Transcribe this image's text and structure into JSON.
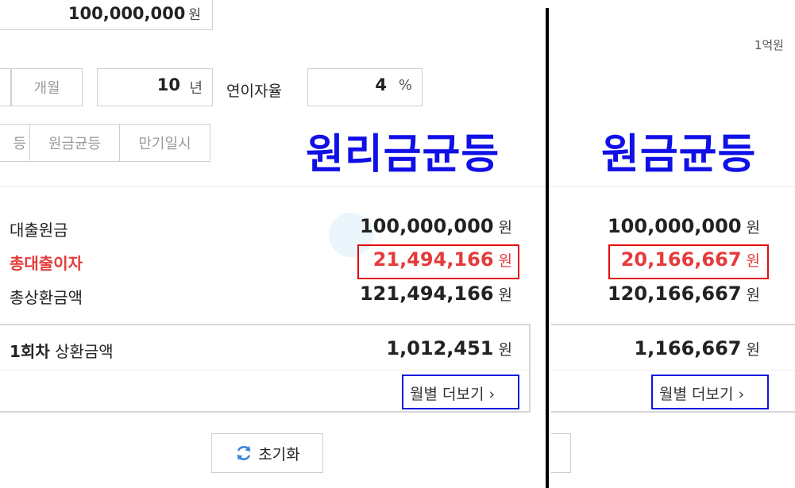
{
  "loan_amount": {
    "value": "100,000,000",
    "unit": "원",
    "hint": "1억원"
  },
  "period": {
    "unit_month_label": "개월",
    "value": "10",
    "unit_year": "년"
  },
  "interest": {
    "label": "연이자율",
    "value": "4",
    "unit": "%"
  },
  "tabs": [
    {
      "label": "등"
    },
    {
      "label": "원금균등"
    },
    {
      "label": "만기일시"
    }
  ],
  "annotations": {
    "left_method": "원리금균등",
    "right_method": "원금균등"
  },
  "results_left": {
    "principal_label": "대출원금",
    "principal_value": "100,000,000",
    "interest_label": "총대출이자",
    "interest_value": "21,494,166",
    "total_label": "총상환금액",
    "total_value": "121,494,166",
    "first_label_bold": "1회차",
    "first_label_rest": "상환금액",
    "first_value": "1,012,451",
    "unit": "원",
    "more_label": "월별 더보기"
  },
  "results_right": {
    "principal_value": "100,000,000",
    "interest_value": "20,166,667",
    "total_value": "120,166,667",
    "first_value": "1,166,667",
    "unit": "원",
    "more_label": "월별 더보기"
  },
  "reset_label": "초기화",
  "colors": {
    "accent_red": "#e53b3b",
    "annotation_blue": "#1010e6",
    "refresh_icon": "#3a86d8"
  }
}
